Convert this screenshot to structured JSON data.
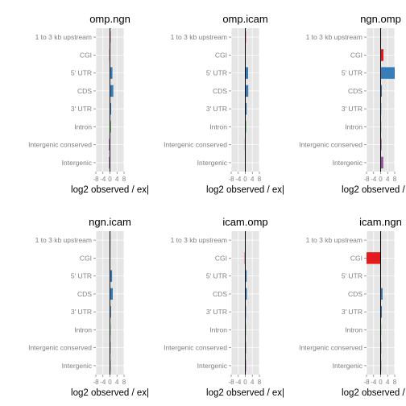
{
  "chart_data": {
    "type": "bar",
    "orientation": "horizontal",
    "categories": [
      "1 to 3 kb upstream",
      "CGI",
      "5' UTR",
      "CDS",
      "3' UTR",
      "Intron",
      "Intergenic conserved",
      "Intergenic"
    ],
    "category_colors": [
      "#E41A1C",
      "#E41A1C",
      "#377EB8",
      "#377EB8",
      "#377EB8",
      "#4DAF4A",
      "#984EA3",
      "#984EA3"
    ],
    "xlim": [
      -8,
      8
    ],
    "xticks": [
      "-8",
      "-4",
      "0",
      "4",
      "8"
    ],
    "xlabel": "log2 observed / ex|",
    "grid": true,
    "panels": [
      {
        "title": "omp.ngn",
        "values": [
          0.0,
          -0.3,
          1.4,
          1.9,
          0.7,
          0.6,
          -0.5,
          -0.5
        ]
      },
      {
        "title": "omp.icam",
        "values": [
          0.2,
          -0.2,
          1.6,
          1.7,
          0.8,
          0.5,
          -0.3,
          -0.2
        ]
      },
      {
        "title": "ngn.omp",
        "values": [
          -0.1,
          1.6,
          8.0,
          0.7,
          0.3,
          0.0,
          0.5,
          1.5
        ]
      },
      {
        "title": "ngn.icam",
        "values": [
          -0.1,
          -0.2,
          1.2,
          1.6,
          0.6,
          0.2,
          0.2,
          0.2
        ]
      },
      {
        "title": "icam.omp",
        "values": [
          -0.2,
          -0.4,
          0.8,
          0.9,
          0.4,
          0.0,
          0.4,
          0.4
        ]
      },
      {
        "title": "icam.ngn",
        "values": [
          -0.1,
          -8.0,
          -0.2,
          1.1,
          0.7,
          0.0,
          0.2,
          0.2
        ]
      }
    ]
  }
}
